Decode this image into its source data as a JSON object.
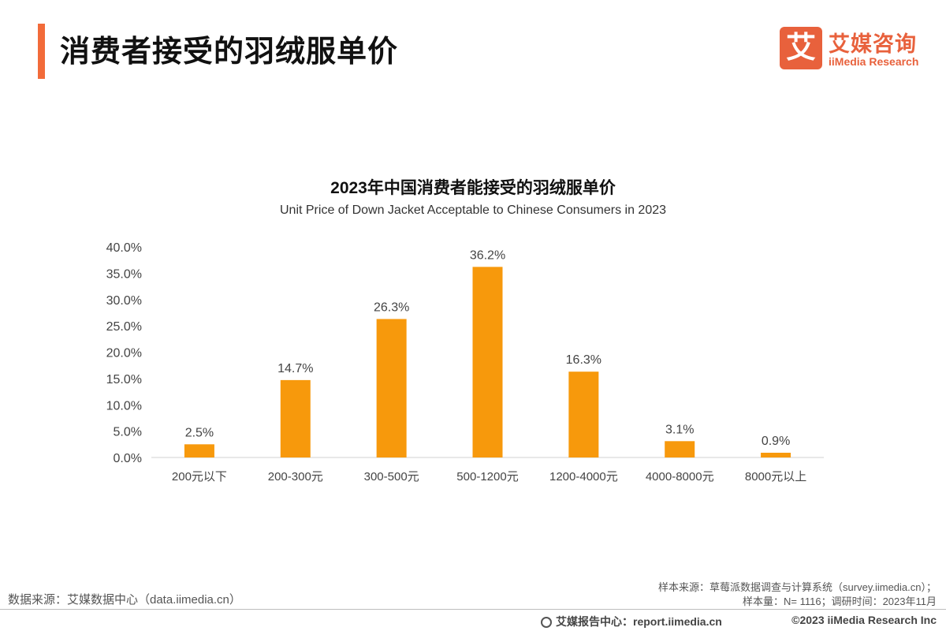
{
  "header": {
    "title": "消费者接受的羽绒服单价",
    "accent_color": "#F26B3A"
  },
  "logo": {
    "glyph": "艾",
    "name_cn": "艾媒咨询",
    "name_en": "iiMedia Research",
    "color": "#E8613C"
  },
  "chart_data": {
    "type": "bar",
    "title": "2023年中国消费者能接受的羽绒服单价",
    "subtitle": "Unit Price of Down Jacket Acceptable to Chinese Consumers in 2023",
    "categories": [
      "200元以下",
      "200-300元",
      "300-500元",
      "500-1200元",
      "1200-4000元",
      "4000-8000元",
      "8000元以上"
    ],
    "values": [
      2.5,
      14.7,
      26.3,
      36.2,
      16.3,
      3.1,
      0.9
    ],
    "data_labels": [
      "2.5%",
      "14.7%",
      "26.3%",
      "36.2%",
      "16.3%",
      "3.1%",
      "0.9%"
    ],
    "ylim": [
      0,
      40
    ],
    "yticks": [
      0,
      5,
      10,
      15,
      20,
      25,
      30,
      35,
      40
    ],
    "ytick_labels": [
      "0.0%",
      "5.0%",
      "10.0%",
      "15.0%",
      "20.0%",
      "25.0%",
      "30.0%",
      "35.0%",
      "40.0%"
    ],
    "bar_color": "#F7990C",
    "grid": false,
    "xlabel": "",
    "ylabel": ""
  },
  "footer": {
    "source_left": "数据来源：艾媒数据中心（data.iimedia.cn）",
    "sample_source": "样本来源：草莓派数据调查与计算系统（survey.iimedia.cn）；",
    "sample_size": "样本量：N= 1116；调研时间：2023年11月",
    "report_center": "艾媒报告中心：report.iimedia.cn",
    "copyright": "©2023  iiMedia Research  Inc"
  }
}
